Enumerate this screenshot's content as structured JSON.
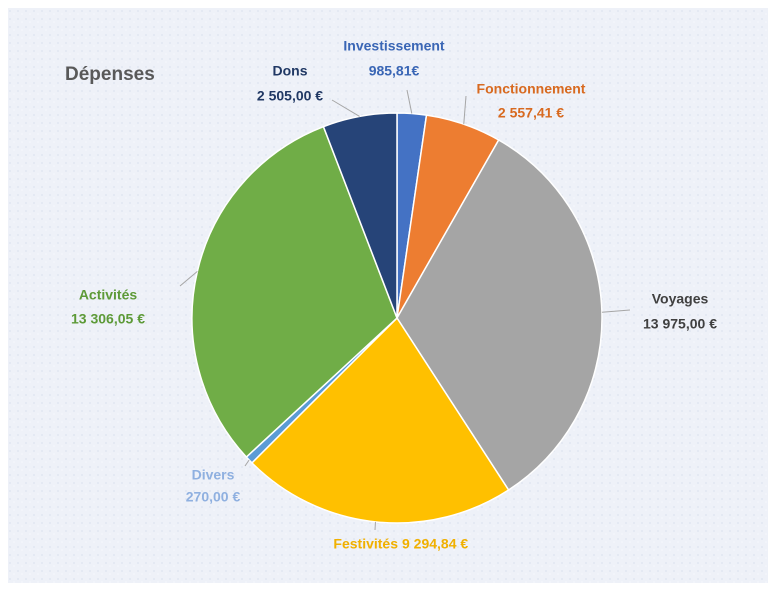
{
  "chart_data": {
    "type": "pie",
    "title": "Dépenses",
    "categories": [
      "Investissement",
      "Fonctionnement",
      "Voyages",
      "Festivités",
      "Divers",
      "Activités",
      "Dons"
    ],
    "values": [
      985.81,
      2557.41,
      13975.0,
      9294.84,
      270.0,
      13306.05,
      2505.0
    ],
    "value_labels": [
      "985,81€",
      "2 557,41 €",
      "13 975,00 €",
      "9 294,84 €",
      "270,00 €",
      "13 306,05 €",
      "2 505,00 €"
    ],
    "colors": [
      "#4472c4",
      "#ed7d31",
      "#a5a5a5",
      "#ffc000",
      "#5b9bd5",
      "#70ad47",
      "#264478"
    ]
  }
}
